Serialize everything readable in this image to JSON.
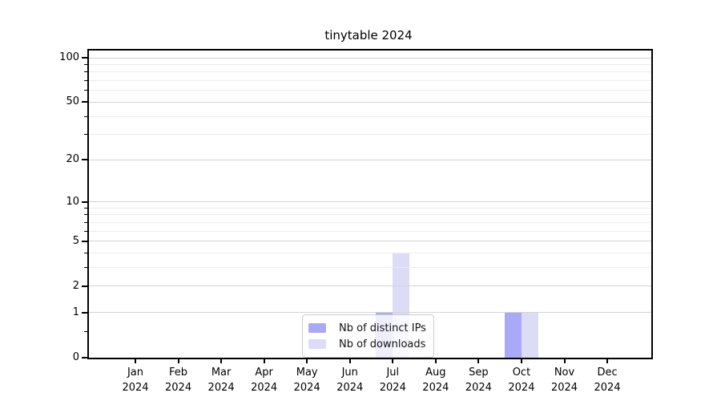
{
  "chart_data": {
    "type": "bar",
    "title": "tinytable 2024",
    "categories": [
      "Jan 2024",
      "Feb 2024",
      "Mar 2024",
      "Apr 2024",
      "May 2024",
      "Jun 2024",
      "Jul 2024",
      "Aug 2024",
      "Sep 2024",
      "Oct 2024",
      "Nov 2024",
      "Dec 2024"
    ],
    "series": [
      {
        "name": "Nb of distinct IPs",
        "color": "#a9a9f5",
        "values": [
          0,
          0,
          0,
          0,
          0,
          0,
          1,
          0,
          0,
          1,
          0,
          0
        ]
      },
      {
        "name": "Nb of downloads",
        "color": "#dcdcf7",
        "values": [
          0,
          0,
          0,
          0,
          0,
          0,
          4,
          0,
          0,
          1,
          0,
          0
        ]
      }
    ],
    "xlabel": "",
    "ylabel": "",
    "yscale": "log1p",
    "ylim": [
      0,
      112
    ],
    "yticks": [
      0,
      1,
      2,
      5,
      10,
      20,
      50,
      100
    ],
    "minor_yticks": [
      0.5,
      3,
      4,
      6,
      7,
      8,
      9,
      30,
      40,
      60,
      70,
      80,
      90
    ],
    "grid": "horizontal",
    "legend_position": "bottom-center"
  },
  "colors": {
    "major_grid": "#d3d3d3",
    "minor_grid": "#ececec",
    "spine": "#000000",
    "bar_dark": "#a9a9f5",
    "bar_light": "#dcdcf7",
    "legend_border": "#cccccc",
    "legend_bg": "rgba(255,255,255,0.8)"
  }
}
